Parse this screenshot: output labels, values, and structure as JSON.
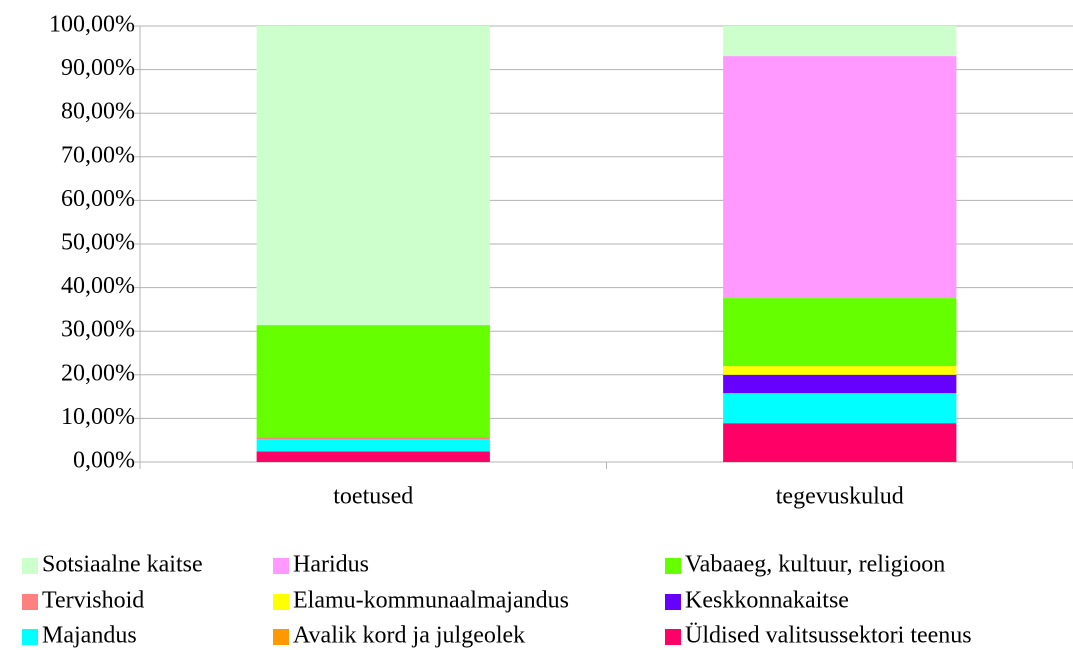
{
  "chart_data": {
    "type": "stacked_bar",
    "categories": [
      "toetused",
      "tegevuskulud"
    ],
    "series": [
      {
        "name": "Sotsiaalne kaitse",
        "color": "#ccffcc",
        "values": [
          68.6,
          6.9
        ]
      },
      {
        "name": "Haridus",
        "color": "#ff99ff",
        "values": [
          0,
          55.5
        ]
      },
      {
        "name": "Vabaaeg, kultuur, religioon",
        "color": "#66ff00",
        "values": [
          25.7,
          15.6
        ]
      },
      {
        "name": "Tervishoid",
        "color": "#ff8080",
        "values": [
          0.5,
          0
        ]
      },
      {
        "name": "Elamu-kommunaalmajandus",
        "color": "#ffff00",
        "values": [
          0,
          2.0
        ]
      },
      {
        "name": "Keskkonnakaitse",
        "color": "#6600ff",
        "values": [
          0,
          4.2
        ]
      },
      {
        "name": "Majandus",
        "color": "#00ffff",
        "values": [
          2.8,
          6.9
        ]
      },
      {
        "name": "Avalik kord ja julgeolek",
        "color": "#ff9900",
        "values": [
          0,
          0
        ]
      },
      {
        "name": "Üldised valitsussektori teenus",
        "color": "#ff0066",
        "values": [
          2.4,
          8.9
        ]
      }
    ],
    "ylim": [
      0,
      100
    ],
    "yticks": [
      {
        "value": 0,
        "label": "0,00%"
      },
      {
        "value": 10,
        "label": "10,00%"
      },
      {
        "value": 20,
        "label": "20,00%"
      },
      {
        "value": 30,
        "label": "30,00%"
      },
      {
        "value": 40,
        "label": "40,00%"
      },
      {
        "value": 50,
        "label": "50,00%"
      },
      {
        "value": 60,
        "label": "60,00%"
      },
      {
        "value": 70,
        "label": "70,00%"
      },
      {
        "value": 80,
        "label": "80,00%"
      },
      {
        "value": 90,
        "label": "90,00%"
      },
      {
        "value": 100,
        "label": "100,00%"
      }
    ],
    "grid": true,
    "legend": "bottom"
  }
}
